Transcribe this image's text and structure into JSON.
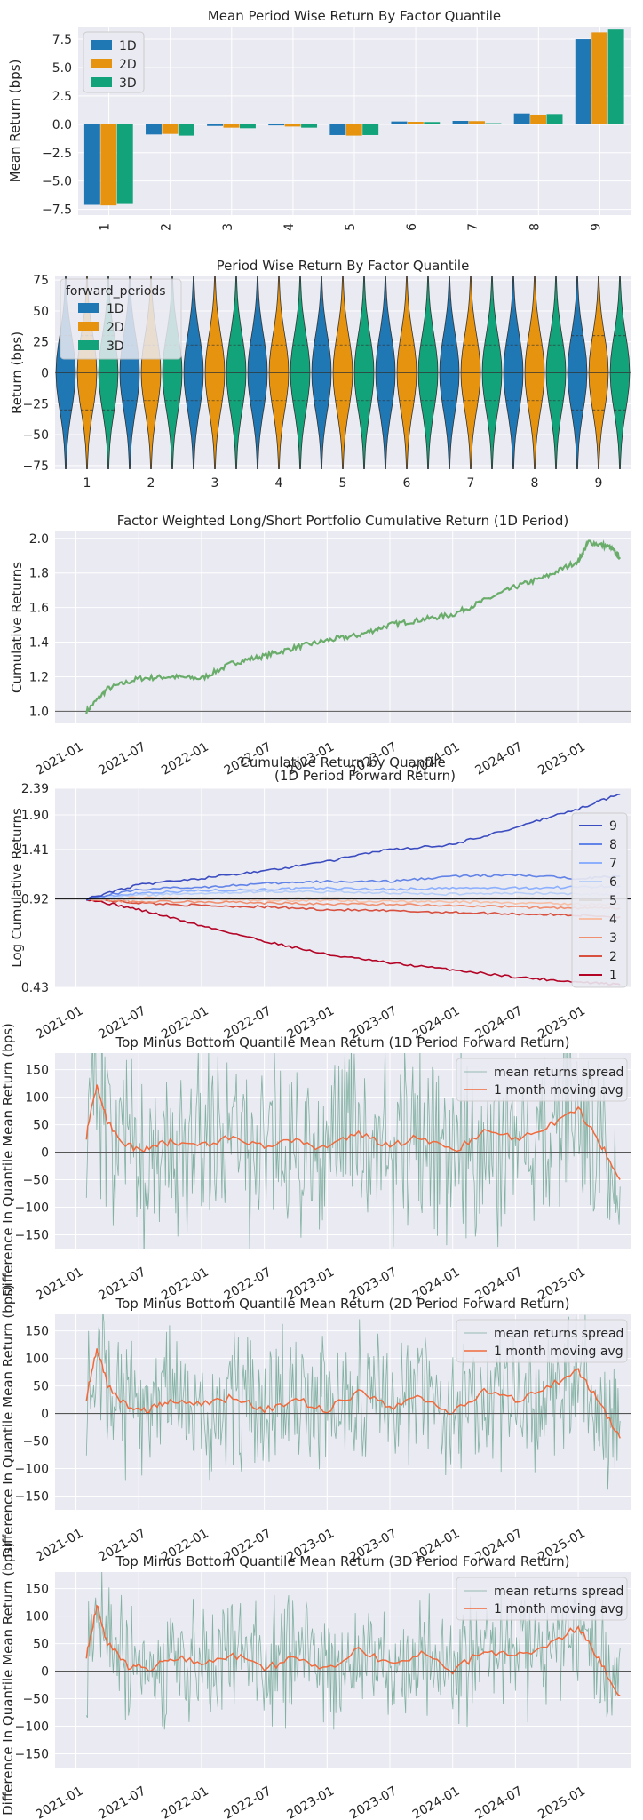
{
  "colors": {
    "background": "#eaeaf2",
    "grid": "#ffffff",
    "quantile_1D": "#1f77b4",
    "quantile_2D": "#e6930f",
    "quantile_3D": "#12a37a",
    "cumulative_line": "#6aad6b",
    "spread_fill": "#5f9e87",
    "moving_avg": "#f06a3c",
    "zero_line": "#555555",
    "quantile_lines": [
      "#b40426",
      "#d8503f",
      "#f08f6f",
      "#f6bfa6",
      "#dedcdb",
      "#b8cff8",
      "#8db0fe",
      "#6283e7",
      "#3b4cc0"
    ]
  },
  "chart_data": [
    {
      "type": "bar",
      "title": "Mean Period Wise Return By Factor Quantile",
      "ylabel": "Mean Return (bps)",
      "xlabel": "",
      "categories": [
        "1",
        "2",
        "3",
        "4",
        "5",
        "6",
        "7",
        "8",
        "9"
      ],
      "series": [
        {
          "name": "1D",
          "values": [
            -7.1,
            -0.9,
            -0.15,
            -0.1,
            -0.95,
            0.25,
            0.3,
            0.95,
            7.5
          ]
        },
        {
          "name": "2D",
          "values": [
            -7.15,
            -0.85,
            -0.3,
            -0.2,
            -1.0,
            0.22,
            0.28,
            0.85,
            8.1
          ]
        },
        {
          "name": "3D",
          "values": [
            -6.95,
            -1.0,
            -0.35,
            -0.3,
            -0.95,
            0.2,
            0.1,
            0.9,
            8.35
          ]
        }
      ],
      "ylim": [
        -8.0,
        8.6
      ],
      "yticks": [
        "7.5",
        "5.0",
        "2.5",
        "0.0",
        "−2.5",
        "−5.0",
        "−7.5"
      ],
      "ytick_values": [
        7.5,
        5.0,
        2.5,
        0.0,
        -2.5,
        -5.0,
        -7.5
      ],
      "legend_position": "top-left"
    },
    {
      "type": "violin",
      "title": "Period Wise Return By Factor Quantile",
      "ylabel": "Return (bps)",
      "xlabel": "",
      "categories": [
        "1",
        "2",
        "3",
        "4",
        "5",
        "6",
        "7",
        "8",
        "9"
      ],
      "series": [
        {
          "name": "1D"
        },
        {
          "name": "2D"
        },
        {
          "name": "3D"
        }
      ],
      "legend_title": "forward_periods",
      "ylim": [
        -78,
        78
      ],
      "yticks": [
        "75",
        "50",
        "25",
        "0",
        "−25",
        "−50",
        "−75"
      ],
      "ytick_values": [
        75,
        50,
        25,
        0,
        -25,
        -50,
        -75
      ],
      "legend_position": "top-left"
    },
    {
      "type": "line",
      "title": "Factor Weighted Long/Short Portfolio Cumulative Return (1D Period)",
      "ylabel": "Cumulative Returns",
      "xlabel": "",
      "x": [
        "2021-02",
        "2021-04",
        "2021-07",
        "2021-10",
        "2022-01",
        "2022-04",
        "2022-07",
        "2022-10",
        "2023-01",
        "2023-04",
        "2023-07",
        "2023-10",
        "2024-01",
        "2024-04",
        "2024-07",
        "2024-10",
        "2025-01",
        "2025-02",
        "2025-04",
        "2025-05"
      ],
      "series": [
        {
          "values": [
            1.0,
            1.13,
            1.19,
            1.2,
            1.19,
            1.28,
            1.32,
            1.37,
            1.41,
            1.44,
            1.5,
            1.53,
            1.56,
            1.64,
            1.72,
            1.78,
            1.87,
            1.98,
            1.95,
            1.89
          ]
        }
      ],
      "ylim": [
        0.93,
        2.04
      ],
      "yticks": [
        "2.0",
        "1.8",
        "1.6",
        "1.4",
        "1.2",
        "1.0"
      ],
      "ytick_values": [
        2.0,
        1.8,
        1.6,
        1.4,
        1.2,
        1.0
      ],
      "xticks": [
        "2021-01",
        "2021-07",
        "2022-01",
        "2022-07",
        "2023-01",
        "2023-07",
        "2024-01",
        "2024-07",
        "2025-01"
      ]
    },
    {
      "type": "line",
      "title": "Cumulative Return by Quantile\n(1D Period Forward Return)",
      "title_lines": [
        "Cumulative Return by Quantile",
        "(1D Period Forward Return)"
      ],
      "ylabel": "Log Cumulative Returns",
      "xlabel": "",
      "x": [
        "2021-02",
        "2021-07",
        "2022-01",
        "2022-07",
        "2023-01",
        "2023-07",
        "2024-01",
        "2024-07",
        "2025-01",
        "2025-05"
      ],
      "series": [
        {
          "name": "1",
          "values": [
            0.92,
            0.84,
            0.73,
            0.64,
            0.57,
            0.53,
            0.5,
            0.47,
            0.45,
            0.44
          ]
        },
        {
          "name": "2",
          "values": [
            0.92,
            0.89,
            0.87,
            0.86,
            0.84,
            0.83,
            0.82,
            0.81,
            0.8,
            0.79
          ]
        },
        {
          "name": "3",
          "values": [
            0.92,
            0.9,
            0.9,
            0.89,
            0.88,
            0.88,
            0.87,
            0.86,
            0.85,
            0.85
          ]
        },
        {
          "name": "4",
          "values": [
            0.92,
            0.93,
            0.92,
            0.91,
            0.91,
            0.9,
            0.9,
            0.89,
            0.88,
            0.88
          ]
        },
        {
          "name": "5",
          "values": [
            0.92,
            0.92,
            0.93,
            0.92,
            0.93,
            0.92,
            0.92,
            0.93,
            0.92,
            0.92
          ]
        },
        {
          "name": "6",
          "values": [
            0.92,
            0.95,
            0.97,
            0.98,
            0.98,
            0.97,
            0.96,
            0.97,
            0.96,
            0.96
          ]
        },
        {
          "name": "7",
          "values": [
            0.92,
            0.97,
            0.99,
            1.0,
            1.01,
            1.0,
            1.01,
            1.01,
            1.02,
            1.03
          ]
        },
        {
          "name": "8",
          "values": [
            0.92,
            1.0,
            1.02,
            1.05,
            1.07,
            1.07,
            1.12,
            1.13,
            1.1,
            1.12
          ]
        },
        {
          "name": "9",
          "values": [
            0.92,
            1.04,
            1.1,
            1.17,
            1.27,
            1.41,
            1.47,
            1.7,
            2.0,
            2.27
          ]
        }
      ],
      "y_scale": "log",
      "ylim": [
        0.43,
        2.39
      ],
      "yticks": [
        "2.39",
        "1.90",
        "1.41",
        "0.92",
        "0.43"
      ],
      "ytick_values": [
        2.39,
        1.9,
        1.41,
        0.92,
        0.43
      ],
      "xticks": [
        "2021-01",
        "2021-07",
        "2022-01",
        "2022-07",
        "2023-01",
        "2023-07",
        "2024-01",
        "2024-07",
        "2025-01"
      ],
      "legend_position": "right",
      "legend_order": [
        "9",
        "8",
        "7",
        "6",
        "5",
        "4",
        "3",
        "2",
        "1"
      ]
    },
    {
      "type": "line",
      "title": "Top Minus Bottom Quantile Mean Return (1D Period Forward Return)",
      "ylabel": "Difference In Quantile Mean Return (bps)",
      "xlabel": "",
      "x": [
        "2021-02",
        "2021-03",
        "2021-04",
        "2021-06",
        "2021-08",
        "2021-10",
        "2022-01",
        "2022-04",
        "2022-07",
        "2022-10",
        "2023-01",
        "2023-04",
        "2023-07",
        "2023-10",
        "2024-01",
        "2024-04",
        "2024-07",
        "2024-10",
        "2025-01",
        "2025-03",
        "2025-05"
      ],
      "series": [
        {
          "name": "mean returns spread"
        },
        {
          "name": "1 month moving avg",
          "values": [
            30,
            125,
            55,
            10,
            5,
            20,
            15,
            25,
            10,
            20,
            5,
            35,
            10,
            30,
            0,
            40,
            25,
            45,
            80,
            20,
            -50
          ]
        }
      ],
      "spread_amplitude": 180,
      "ylim": [
        -175,
        180
      ],
      "yticks": [
        "150",
        "100",
        "50",
        "0",
        "−50",
        "−100",
        "−150"
      ],
      "ytick_values": [
        150,
        100,
        50,
        0,
        -50,
        -100,
        -150
      ],
      "xticks": [
        "2021-01",
        "2021-07",
        "2022-01",
        "2022-07",
        "2023-01",
        "2023-07",
        "2024-01",
        "2024-07",
        "2025-01"
      ],
      "legend_position": "top-right"
    },
    {
      "type": "line",
      "title": "Top Minus Bottom Quantile Mean Return (2D Period Forward Return)",
      "ylabel": "Difference In Quantile Mean Return (bps)",
      "xlabel": "",
      "x": [
        "2021-02",
        "2021-03",
        "2021-04",
        "2021-06",
        "2021-08",
        "2021-10",
        "2022-01",
        "2022-04",
        "2022-07",
        "2022-10",
        "2023-01",
        "2023-04",
        "2023-07",
        "2023-10",
        "2024-01",
        "2024-04",
        "2024-07",
        "2024-10",
        "2025-01",
        "2025-03",
        "2025-05"
      ],
      "series": [
        {
          "name": "mean returns spread"
        },
        {
          "name": "1 month moving avg",
          "values": [
            30,
            120,
            50,
            10,
            5,
            25,
            15,
            30,
            5,
            25,
            5,
            40,
            10,
            30,
            0,
            40,
            25,
            45,
            80,
            20,
            -45
          ]
        }
      ],
      "spread_amplitude": 130,
      "ylim": [
        -175,
        180
      ],
      "yticks": [
        "150",
        "100",
        "50",
        "0",
        "−50",
        "−100",
        "−150"
      ],
      "ytick_values": [
        150,
        100,
        50,
        0,
        -50,
        -100,
        -150
      ],
      "xticks": [
        "2021-01",
        "2021-07",
        "2022-01",
        "2022-07",
        "2023-01",
        "2023-07",
        "2024-01",
        "2024-07",
        "2025-01"
      ],
      "legend_position": "top-right"
    },
    {
      "type": "line",
      "title": "Top Minus Bottom Quantile Mean Return (3D Period Forward Return)",
      "ylabel": "Difference In Quantile Mean Return (bps)",
      "xlabel": "",
      "x": [
        "2021-02",
        "2021-03",
        "2021-04",
        "2021-06",
        "2021-08",
        "2021-10",
        "2022-01",
        "2022-04",
        "2022-07",
        "2022-10",
        "2023-01",
        "2023-04",
        "2023-07",
        "2023-10",
        "2024-01",
        "2024-04",
        "2024-07",
        "2024-10",
        "2025-01",
        "2025-03",
        "2025-05"
      ],
      "series": [
        {
          "name": "mean returns spread"
        },
        {
          "name": "1 month moving avg",
          "values": [
            30,
            120,
            50,
            10,
            5,
            25,
            15,
            30,
            5,
            25,
            5,
            40,
            10,
            30,
            0,
            40,
            25,
            45,
            80,
            20,
            -45
          ]
        }
      ],
      "spread_amplitude": 110,
      "ylim": [
        -175,
        180
      ],
      "yticks": [
        "150",
        "100",
        "50",
        "0",
        "−50",
        "−100",
        "−150"
      ],
      "ytick_values": [
        150,
        100,
        50,
        0,
        -50,
        -100,
        -150
      ],
      "xticks": [
        "2021-01",
        "2021-07",
        "2022-01",
        "2022-07",
        "2023-01",
        "2023-07",
        "2024-01",
        "2024-07",
        "2025-01"
      ],
      "legend_position": "top-right"
    }
  ]
}
